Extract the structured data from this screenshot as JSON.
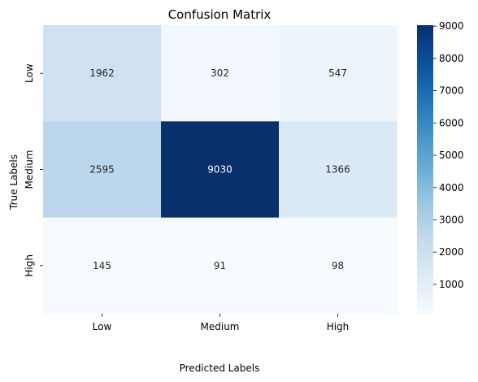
{
  "chart_data": {
    "type": "heatmap",
    "title": "Confusion Matrix",
    "xlabel": "Predicted Labels",
    "ylabel": "True Labels",
    "x_categories": [
      "Low",
      "Medium",
      "High"
    ],
    "y_categories": [
      "Low",
      "Medium",
      "High"
    ],
    "values": [
      [
        1962,
        302,
        547
      ],
      [
        2595,
        9030,
        1366
      ],
      [
        145,
        91,
        98
      ]
    ],
    "colormap": "Blues",
    "color_range": [
      91,
      9030
    ],
    "colorbar_ticks": [
      "1000",
      "2000",
      "3000",
      "4000",
      "5000",
      "6000",
      "7000",
      "8000",
      "9000"
    ],
    "grid": false,
    "legend": "none"
  }
}
